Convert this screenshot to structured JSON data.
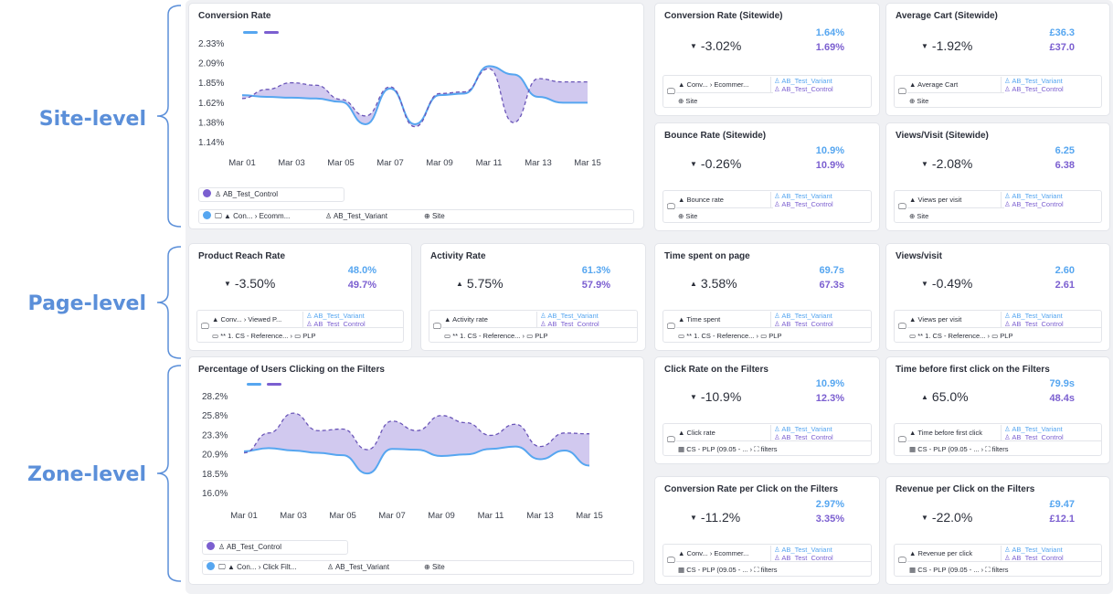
{
  "levels": {
    "site": "Site-level",
    "page": "Page-level",
    "zone": "Zone-level"
  },
  "colors": {
    "variant": "#56a6f0",
    "control": "#7b5fd0",
    "fill": "#c9c0ec",
    "label": "#5b8fd9"
  },
  "site_chart": {
    "title": "Conversion Rate",
    "chart_data": {
      "type": "line",
      "y_ticks": [
        "2.33%",
        "2.09%",
        "1.85%",
        "1.62%",
        "1.38%",
        "1.14%"
      ],
      "ylim": [
        1.14,
        2.33
      ],
      "x_ticks": [
        "Mar 01",
        "Mar 03",
        "Mar 05",
        "Mar 07",
        "Mar 09",
        "Mar 11",
        "Mar 13",
        "Mar 15"
      ],
      "x": [
        0,
        1,
        2,
        3,
        4,
        5,
        6,
        7,
        8,
        9,
        10,
        11,
        12,
        13,
        14
      ],
      "series": [
        {
          "name": "AB_Test_Variant",
          "values": [
            1.7,
            1.68,
            1.67,
            1.66,
            1.62,
            1.35,
            1.78,
            1.35,
            1.7,
            1.72,
            2.05,
            1.95,
            1.68,
            1.61,
            1.61
          ]
        },
        {
          "name": "AB_Test_Control",
          "values": [
            1.66,
            1.77,
            1.85,
            1.82,
            1.65,
            1.45,
            1.8,
            1.32,
            1.72,
            1.74,
            2.02,
            1.37,
            1.9,
            1.86,
            1.86
          ]
        }
      ]
    },
    "control_label": "AB_Test_Control",
    "ctx": {
      "a": "Con...",
      "b": "Ecomm...",
      "variant": "AB_Test_Variant",
      "scope": "Site"
    }
  },
  "zone_chart": {
    "title": "Percentage of Users Clicking on the Filters",
    "chart_data": {
      "type": "line",
      "y_ticks": [
        "28.2%",
        "25.8%",
        "23.3%",
        "20.9%",
        "18.5%",
        "16.0%"
      ],
      "ylim": [
        16.0,
        28.2
      ],
      "x_ticks": [
        "Mar 01",
        "Mar 03",
        "Mar 05",
        "Mar 07",
        "Mar 09",
        "Mar 11",
        "Mar 13",
        "Mar 15"
      ],
      "x": [
        0,
        1,
        2,
        3,
        4,
        5,
        6,
        7,
        8,
        9,
        10,
        11,
        12,
        13,
        14
      ],
      "series": [
        {
          "name": "AB_Test_Variant",
          "values": [
            21.2,
            21.6,
            21.3,
            21.0,
            20.7,
            18.4,
            21.5,
            21.4,
            20.6,
            20.8,
            21.5,
            21.8,
            20.2,
            21.3,
            19.4
          ]
        },
        {
          "name": "AB_Test_Control",
          "values": [
            21.0,
            23.5,
            26.0,
            23.8,
            24.0,
            21.4,
            25.0,
            23.8,
            25.7,
            24.8,
            23.2,
            24.6,
            21.8,
            23.5,
            23.4
          ]
        }
      ]
    },
    "control_label": "AB_Test_Control",
    "ctx": {
      "a": "Con...",
      "b": "Click Filt...",
      "variant": "AB_Test_Variant",
      "scope": "Site"
    }
  },
  "cards": [
    {
      "title": "Conversion Rate (Sitewide)",
      "dir": "▼",
      "delta": "-3.02%",
      "v1": "1.64%",
      "v2": "1.69%",
      "r1": [
        "Conv...",
        "Ecommer..."
      ],
      "r2": "Site"
    },
    {
      "title": "Average Cart (Sitewide)",
      "dir": "▼",
      "delta": "-1.92%",
      "v1": "£36.3",
      "v2": "£37.0",
      "r1": [
        "Average Cart"
      ],
      "r2": "Site"
    },
    {
      "title": "Bounce Rate (Sitewide)",
      "dir": "▼",
      "delta": "-0.26%",
      "v1": "10.9%",
      "v2": "10.9%",
      "r1": [
        "Bounce rate"
      ],
      "r2": "Site"
    },
    {
      "title": "Views/Visit (Sitewide)",
      "dir": "▼",
      "delta": "-2.08%",
      "v1": "6.25",
      "v2": "6.38",
      "r1": [
        "Views per visit"
      ],
      "r2": "Site"
    },
    {
      "title": "Product Reach Rate",
      "dir": "▼",
      "delta": "-3.50%",
      "v1": "48.0%",
      "v2": "49.7%",
      "r1": [
        "Conv...",
        "Viewed P..."
      ],
      "r2": "** 1. CS - Reference...",
      "r2b": "PLP"
    },
    {
      "title": "Activity Rate",
      "dir": "▲",
      "delta": "5.75%",
      "v1": "61.3%",
      "v2": "57.9%",
      "r1": [
        "Activity rate"
      ],
      "r2": "** 1. CS - Reference...",
      "r2b": "PLP"
    },
    {
      "title": "Time spent on page",
      "dir": "▲",
      "delta": "3.58%",
      "v1": "69.7s",
      "v2": "67.3s",
      "r1": [
        "Time spent"
      ],
      "r2": "** 1. CS - Reference...",
      "r2b": "PLP"
    },
    {
      "title": "Views/visit",
      "dir": "▼",
      "delta": "-0.49%",
      "v1": "2.60",
      "v2": "2.61",
      "r1": [
        "Views per visit"
      ],
      "r2": "** 1. CS - Reference...",
      "r2b": "PLP"
    },
    {
      "title": "Click Rate on the Filters",
      "dir": "▼",
      "delta": "-10.9%",
      "v1": "10.9%",
      "v2": "12.3%",
      "r1": [
        "Click rate"
      ],
      "r2": "CS - PLP (09.05 - ...",
      "r2b": "filters"
    },
    {
      "title": "Time before first click on the Filters",
      "dir": "▲",
      "delta": "65.0%",
      "v1": "79.9s",
      "v2": "48.4s",
      "r1": [
        "Time before first click"
      ],
      "r2": "CS - PLP (09.05 - ...",
      "r2b": "filters"
    },
    {
      "title": "Conversion Rate per Click on the Filters",
      "dir": "▼",
      "delta": "-11.2%",
      "v1": "2.97%",
      "v2": "3.35%",
      "r1": [
        "Conv...",
        "Ecommer..."
      ],
      "r2": "CS - PLP (09.05 - ...",
      "r2b": "filters"
    },
    {
      "title": "Revenue per Click on the Filters",
      "dir": "▼",
      "delta": "-22.0%",
      "v1": "£9.47",
      "v2": "£12.1",
      "r1": [
        "Revenue per click"
      ],
      "r2": "CS - PLP (09.05 - ...",
      "r2b": "filters"
    }
  ],
  "ab": {
    "variant": "AB_Test_Variant",
    "control": "AB_Test_Control"
  }
}
